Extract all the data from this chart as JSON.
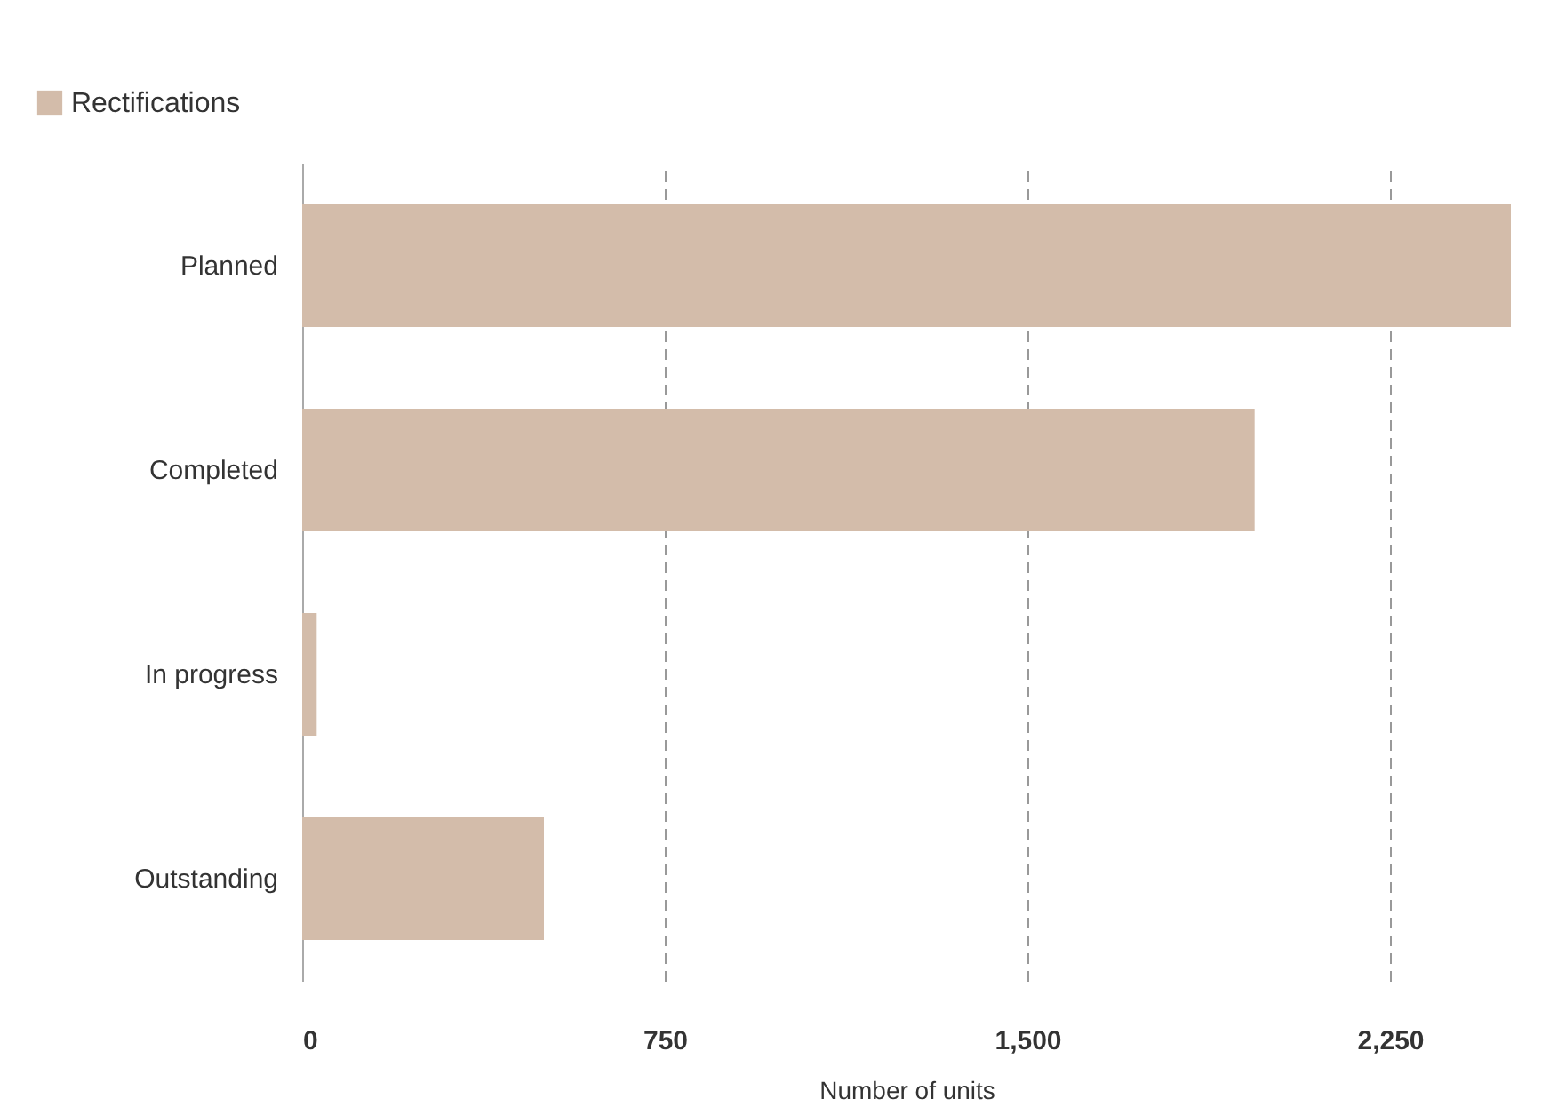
{
  "chart_data": {
    "type": "bar",
    "orientation": "horizontal",
    "categories": [
      "Planned",
      "Completed",
      "In progress",
      "Outstanding"
    ],
    "series": [
      {
        "name": "Rectifications",
        "color": "#d3bcaa",
        "values": [
          2500,
          1970,
          30,
          500
        ]
      }
    ],
    "xlabel": "Number of units",
    "xlim": [
      0,
      2500
    ],
    "xticks": [
      0,
      {
        "value": 750,
        "label": "750"
      },
      {
        "value": 1500,
        "label": "1,500"
      },
      {
        "value": 2250,
        "label": "2,250"
      }
    ],
    "grid": "x",
    "legend": "top left"
  }
}
